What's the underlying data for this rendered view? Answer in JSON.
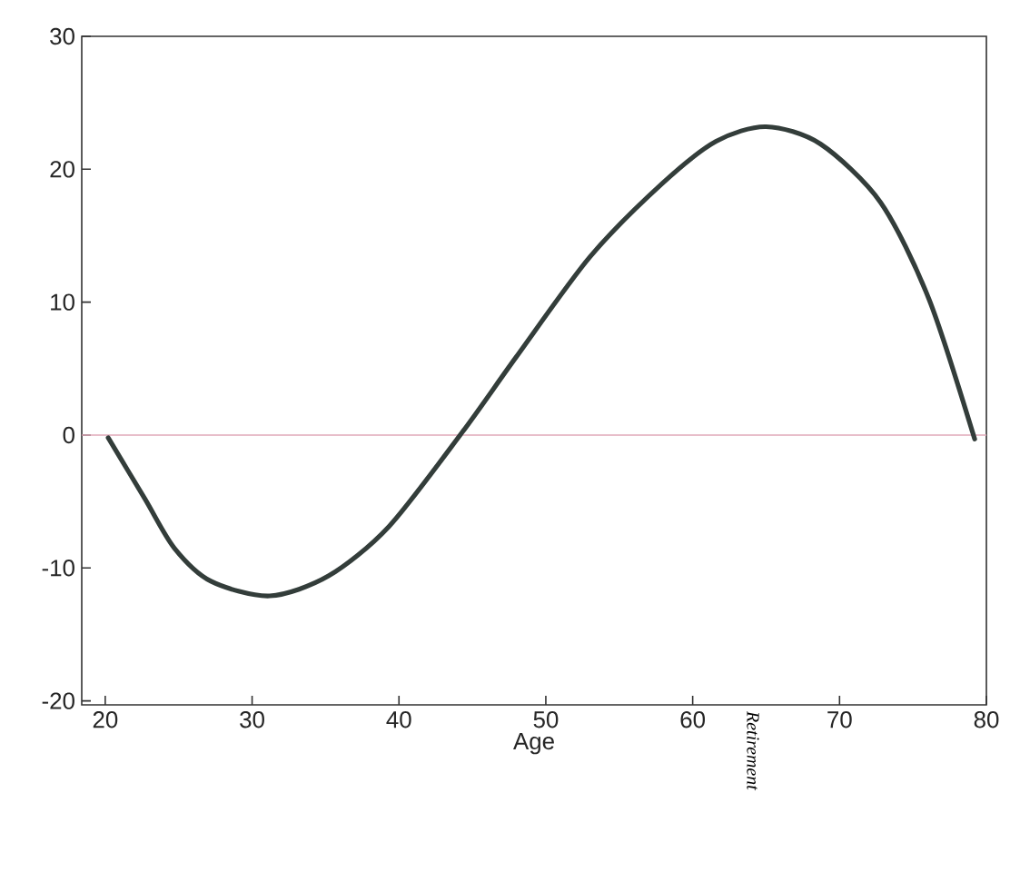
{
  "chart_data": {
    "type": "line",
    "xlabel": "Age",
    "xlim": [
      18.4,
      80
    ],
    "xticks": [
      20,
      30,
      40,
      50,
      60,
      70,
      80
    ],
    "ylim": [
      -20.3,
      30
    ],
    "yticks": [
      -20,
      -10,
      0,
      10,
      20,
      30
    ],
    "grid": false,
    "series": [
      {
        "color": "#333d3a",
        "x": [
          20.2,
          22.7,
          24.7,
          27.2,
          31.2,
          35.2,
          39.3,
          44.3,
          48.0,
          53.0,
          57.9,
          61.6,
          65.0,
          68.7,
          72.8,
          76.1,
          79.2
        ],
        "values": [
          -0.2,
          -4.8,
          -8.5,
          -11,
          -12.1,
          -10.6,
          -6.9,
          0.2,
          5.9,
          13.4,
          18.9,
          22.1,
          23.2,
          21.9,
          17.5,
          10.2,
          -0.3
        ]
      }
    ],
    "ref_lines": [
      {
        "axis": "y",
        "value": 0,
        "color": "#e0a8b8"
      }
    ],
    "annotations": [
      "Retirement"
    ]
  }
}
